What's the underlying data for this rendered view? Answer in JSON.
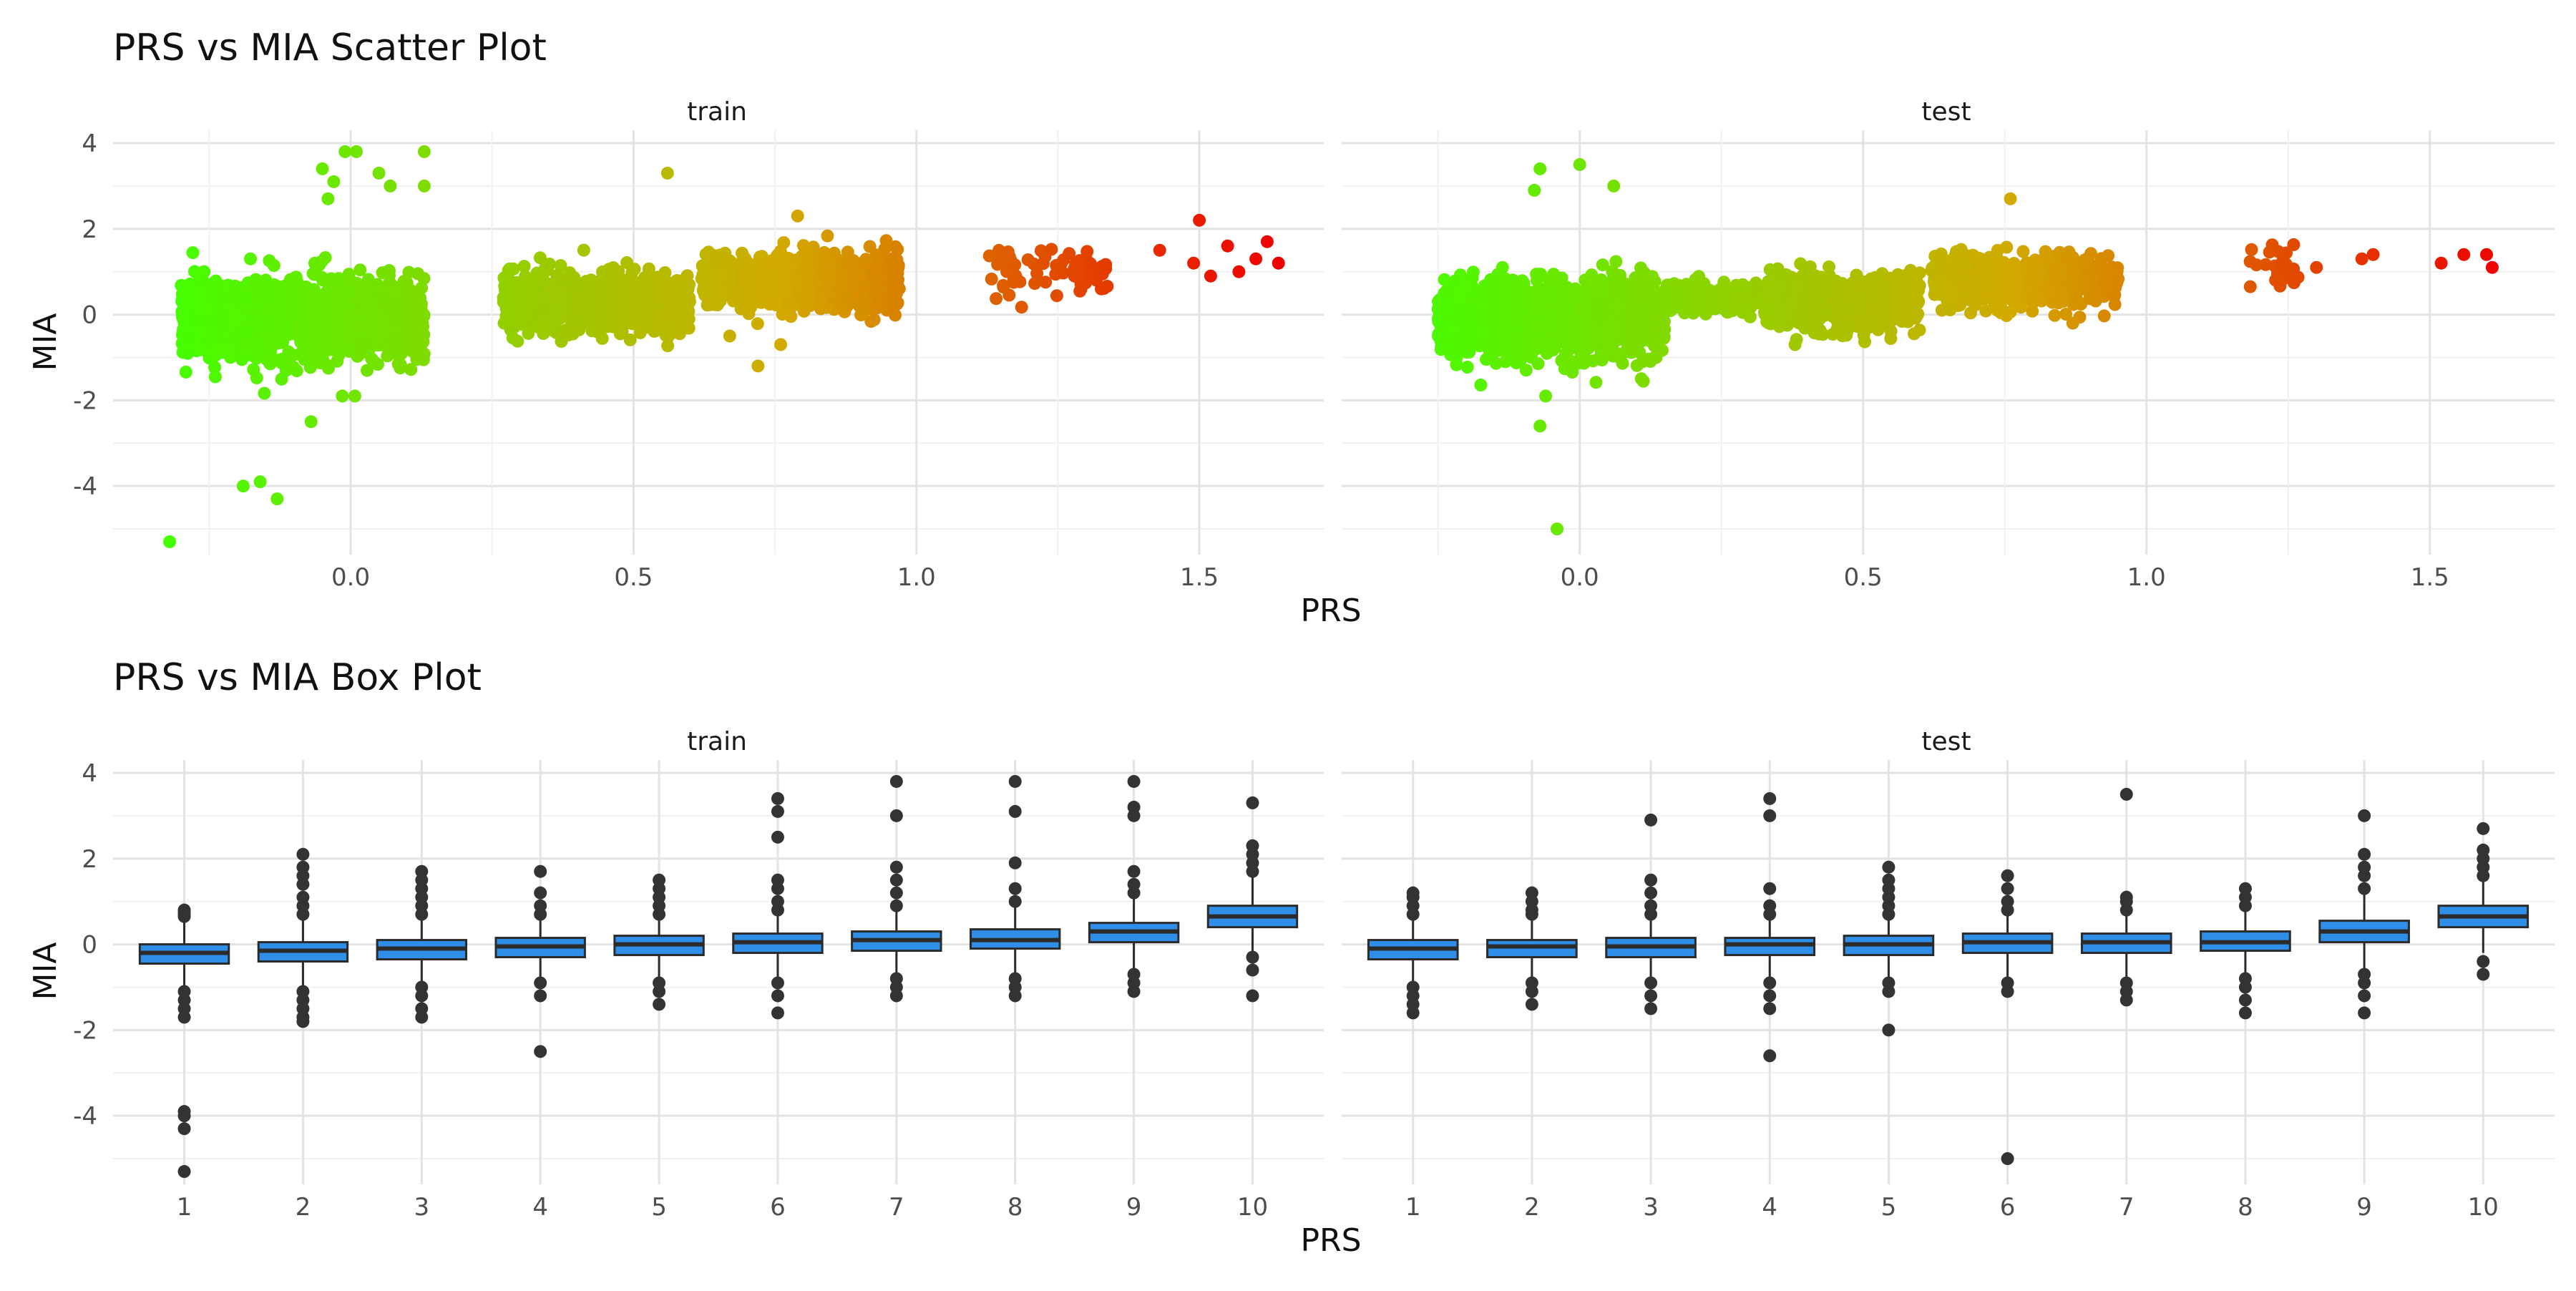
{
  "colors": {
    "low": "#44ff00",
    "high": "#ee0000",
    "box_fill": "#2f8fe8",
    "box_stroke": "#2b2b2b",
    "outlier": "#333333"
  },
  "chart_data": [
    {
      "type": "scatter",
      "title": "PRS vs MIA Scatter Plot",
      "xlabel": "PRS",
      "ylabel": "MIA",
      "facets": [
        "train",
        "test"
      ],
      "xlim": [
        -0.42,
        1.72
      ],
      "ylim": [
        -5.6,
        4.3
      ],
      "x_ticks": [
        "0.0",
        "0.5",
        "1.0",
        "1.5"
      ],
      "y_ticks": [
        "4",
        "2",
        "0",
        "-2",
        "-4"
      ],
      "color_scale": "gradient green (low PRS) to red (high PRS)",
      "clusters": {
        "train": [
          {
            "x_range": [
              -0.3,
              0.13
            ],
            "y_mean": -0.1,
            "y_sd": 0.45,
            "n": 1500
          },
          {
            "x_range": [
              0.27,
              0.6
            ],
            "y_mean": 0.3,
            "y_sd": 0.32,
            "n": 1000
          },
          {
            "x_range": [
              0.62,
              0.97
            ],
            "y_mean": 0.75,
            "y_sd": 0.3,
            "n": 1000
          },
          {
            "x_range": [
              1.12,
              1.34
            ],
            "y_mean": 1.0,
            "y_sd": 0.3,
            "n": 70
          }
        ],
        "test": [
          {
            "x_range": [
              -0.25,
              0.15
            ],
            "y_mean": -0.1,
            "y_sd": 0.45,
            "n": 1200
          },
          {
            "x_range": [
              0.15,
              0.35
            ],
            "y_mean": 0.35,
            "y_sd": 0.2,
            "n": 200
          },
          {
            "x_range": [
              0.33,
              0.6
            ],
            "y_mean": 0.3,
            "y_sd": 0.3,
            "n": 700
          },
          {
            "x_range": [
              0.62,
              0.95
            ],
            "y_mean": 0.8,
            "y_sd": 0.28,
            "n": 600
          },
          {
            "x_range": [
              1.18,
              1.27
            ],
            "y_mean": 1.05,
            "y_sd": 0.3,
            "n": 25
          }
        ]
      },
      "notable_points": {
        "train": [
          [
            -0.32,
            -5.3
          ],
          [
            -0.19,
            -4.0
          ],
          [
            -0.16,
            -3.9
          ],
          [
            -0.13,
            -4.3
          ],
          [
            -0.07,
            -2.5
          ],
          [
            -0.03,
            3.1
          ],
          [
            -0.01,
            3.8
          ],
          [
            0.01,
            3.8
          ],
          [
            0.05,
            3.3
          ],
          [
            0.07,
            3.0
          ],
          [
            0.13,
            3.8
          ],
          [
            0.13,
            3.0
          ],
          [
            -0.05,
            3.4
          ],
          [
            -0.04,
            2.7
          ],
          [
            0.56,
            3.3
          ],
          [
            0.79,
            2.3
          ],
          [
            0.72,
            -1.2
          ],
          [
            0.76,
            -0.7
          ],
          [
            0.67,
            -0.5
          ],
          [
            1.43,
            1.5
          ],
          [
            1.49,
            1.2
          ],
          [
            1.5,
            2.2
          ],
          [
            1.52,
            0.9
          ],
          [
            1.55,
            1.6
          ],
          [
            1.57,
            1.0
          ],
          [
            1.6,
            1.3
          ],
          [
            1.62,
            1.7
          ],
          [
            1.64,
            1.2
          ]
        ],
        "test": [
          [
            -0.07,
            3.4
          ],
          [
            -0.08,
            2.9
          ],
          [
            0.0,
            3.5
          ],
          [
            0.06,
            3.0
          ],
          [
            -0.04,
            -5.0
          ],
          [
            -0.07,
            -2.6
          ],
          [
            -0.06,
            -1.9
          ],
          [
            0.76,
            2.7
          ],
          [
            0.38,
            -0.7
          ],
          [
            0.87,
            -0.2
          ],
          [
            1.3,
            1.1
          ],
          [
            1.38,
            1.3
          ],
          [
            1.4,
            1.4
          ],
          [
            1.52,
            1.2
          ],
          [
            1.56,
            1.4
          ],
          [
            1.6,
            1.4
          ],
          [
            1.61,
            1.1
          ]
        ]
      }
    },
    {
      "type": "box",
      "title": "PRS vs MIA Box Plot",
      "xlabel": "PRS",
      "ylabel": "MIA",
      "facets": [
        "train",
        "test"
      ],
      "categories": [
        "1",
        "2",
        "3",
        "4",
        "5",
        "6",
        "7",
        "8",
        "9",
        "10"
      ],
      "ylim": [
        -5.6,
        4.3
      ],
      "y_ticks": [
        "4",
        "2",
        "0",
        "-2",
        "-4"
      ],
      "boxes": {
        "train": [
          {
            "q1": -0.45,
            "median": -0.2,
            "q3": 0.0,
            "lower": -1.0,
            "upper": 0.6,
            "outliers": [
              0.75,
              0.8,
              0.7,
              0.65,
              -1.1,
              -1.3,
              -1.5,
              -1.7,
              -3.9,
              -4.0,
              -4.3,
              -5.3
            ]
          },
          {
            "q1": -0.4,
            "median": -0.15,
            "q3": 0.05,
            "lower": -1.0,
            "upper": 0.6,
            "outliers": [
              0.7,
              0.9,
              1.1,
              1.4,
              1.6,
              1.8,
              2.1,
              -1.1,
              -1.3,
              -1.5,
              -1.7,
              -1.8
            ]
          },
          {
            "q1": -0.35,
            "median": -0.1,
            "q3": 0.1,
            "lower": -0.9,
            "upper": 0.6,
            "outliers": [
              0.7,
              0.9,
              1.1,
              1.3,
              1.5,
              1.7,
              -1.0,
              -1.2,
              -1.5,
              -1.7
            ]
          },
          {
            "q1": -0.3,
            "median": -0.05,
            "q3": 0.15,
            "lower": -0.8,
            "upper": 0.6,
            "outliers": [
              0.7,
              0.9,
              1.2,
              1.7,
              -0.9,
              -1.2,
              -2.5
            ]
          },
          {
            "q1": -0.25,
            "median": 0.0,
            "q3": 0.2,
            "lower": -0.8,
            "upper": 0.6,
            "outliers": [
              0.7,
              0.9,
              1.1,
              1.3,
              1.5,
              -0.9,
              -1.1,
              -1.4
            ]
          },
          {
            "q1": -0.2,
            "median": 0.05,
            "q3": 0.25,
            "lower": -0.8,
            "upper": 0.7,
            "outliers": [
              0.8,
              1.0,
              1.3,
              1.5,
              2.5,
              3.1,
              3.4,
              -0.9,
              -1.2,
              -1.6
            ]
          },
          {
            "q1": -0.15,
            "median": 0.1,
            "q3": 0.3,
            "lower": -0.7,
            "upper": 0.8,
            "outliers": [
              0.9,
              1.2,
              1.5,
              1.8,
              3.0,
              3.8,
              -0.8,
              -1.0,
              -1.2
            ]
          },
          {
            "q1": -0.1,
            "median": 0.1,
            "q3": 0.35,
            "lower": -0.7,
            "upper": 0.9,
            "outliers": [
              1.0,
              1.3,
              1.9,
              3.1,
              3.8,
              -0.8,
              -1.0,
              -1.2
            ]
          },
          {
            "q1": 0.05,
            "median": 0.3,
            "q3": 0.5,
            "lower": -0.6,
            "upper": 1.1,
            "outliers": [
              1.2,
              1.4,
              1.7,
              3.0,
              3.2,
              3.8,
              -0.7,
              -0.9,
              -1.1
            ]
          },
          {
            "q1": 0.4,
            "median": 0.65,
            "q3": 0.9,
            "lower": -0.2,
            "upper": 1.6,
            "outliers": [
              1.7,
              1.9,
              2.1,
              2.3,
              3.3,
              -0.3,
              -0.6,
              -1.2
            ]
          }
        ],
        "test": [
          {
            "q1": -0.35,
            "median": -0.1,
            "q3": 0.1,
            "lower": -0.9,
            "upper": 0.6,
            "outliers": [
              0.7,
              0.9,
              1.1,
              1.2,
              -1.0,
              -1.2,
              -1.4,
              -1.6
            ]
          },
          {
            "q1": -0.3,
            "median": -0.05,
            "q3": 0.1,
            "lower": -0.8,
            "upper": 0.6,
            "outliers": [
              0.7,
              0.8,
              1.0,
              1.2,
              -0.9,
              -1.1,
              -1.4
            ]
          },
          {
            "q1": -0.3,
            "median": -0.05,
            "q3": 0.15,
            "lower": -0.8,
            "upper": 0.6,
            "outliers": [
              0.7,
              0.9,
              1.2,
              1.5,
              2.9,
              -0.9,
              -1.2,
              -1.5
            ]
          },
          {
            "q1": -0.25,
            "median": 0.0,
            "q3": 0.15,
            "lower": -0.8,
            "upper": 0.6,
            "outliers": [
              0.7,
              0.9,
              1.3,
              3.0,
              3.4,
              -0.9,
              -1.2,
              -1.5,
              -2.6
            ]
          },
          {
            "q1": -0.25,
            "median": 0.0,
            "q3": 0.2,
            "lower": -0.8,
            "upper": 0.6,
            "outliers": [
              0.7,
              0.9,
              1.1,
              1.3,
              1.5,
              1.8,
              -0.9,
              -1.1,
              -2.0
            ]
          },
          {
            "q1": -0.2,
            "median": 0.05,
            "q3": 0.25,
            "lower": -0.8,
            "upper": 0.7,
            "outliers": [
              0.8,
              1.0,
              1.3,
              1.6,
              -0.9,
              -1.1,
              -5.0
            ]
          },
          {
            "q1": -0.2,
            "median": 0.05,
            "q3": 0.25,
            "lower": -0.8,
            "upper": 0.7,
            "outliers": [
              0.8,
              1.0,
              1.1,
              3.5,
              -0.9,
              -1.1,
              -1.3
            ]
          },
          {
            "q1": -0.15,
            "median": 0.05,
            "q3": 0.3,
            "lower": -0.7,
            "upper": 0.8,
            "outliers": [
              0.9,
              1.1,
              1.3,
              -0.8,
              -1.0,
              -1.3,
              -1.6
            ]
          },
          {
            "q1": 0.05,
            "median": 0.3,
            "q3": 0.55,
            "lower": -0.6,
            "upper": 1.2,
            "outliers": [
              1.3,
              1.6,
              1.8,
              2.1,
              3.0,
              -0.7,
              -0.9,
              -1.2,
              -1.6
            ]
          },
          {
            "q1": 0.4,
            "median": 0.65,
            "q3": 0.9,
            "lower": -0.2,
            "upper": 1.5,
            "outliers": [
              1.6,
              1.8,
              2.0,
              2.2,
              2.7,
              -0.4,
              -0.7
            ]
          }
        ]
      }
    }
  ]
}
